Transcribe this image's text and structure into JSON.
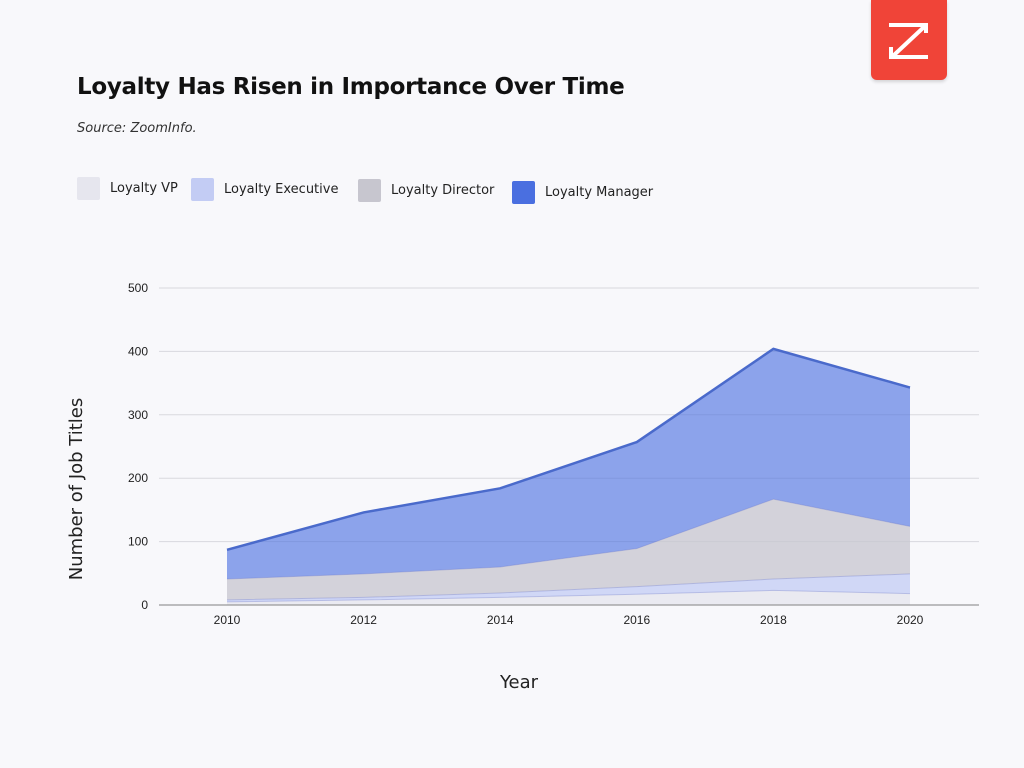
{
  "title": "Loyalty Has Risen in Importance Over Time",
  "source": "Source: ZoomInfo.",
  "logo_letter": "Z",
  "colors": {
    "background": "#f8f8fb",
    "logo": "#f04438",
    "grid": "#d9d9de",
    "axis": "#999999"
  },
  "chart_data": {
    "type": "area",
    "stacked": true,
    "x": [
      2010,
      2012,
      2014,
      2016,
      2018,
      2020
    ],
    "xlabel": "Year",
    "ylabel": "Number of Job Titles",
    "ylim": [
      0,
      500
    ],
    "yticks": [
      0,
      100,
      200,
      300,
      400,
      500
    ],
    "grid": true,
    "legend_position": "top-left",
    "series": [
      {
        "name": "Loyalty VP",
        "color": "#e6e6ee",
        "values": [
          5,
          8,
          12,
          17,
          23,
          18
        ]
      },
      {
        "name": "Loyalty Executive",
        "color": "#c3ccf4",
        "values": [
          3,
          4,
          7,
          12,
          18,
          31
        ]
      },
      {
        "name": "Loyalty Director",
        "color": "#c7c6cf",
        "values": [
          33,
          37,
          41,
          60,
          126,
          75
        ]
      },
      {
        "name": "Loyalty Manager",
        "color": "#4a6fe0",
        "values": [
          46,
          97,
          124,
          168,
          237,
          219
        ]
      }
    ]
  }
}
